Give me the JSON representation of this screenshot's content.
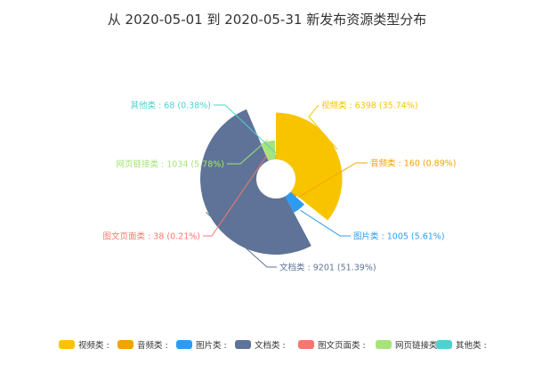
{
  "chart_data": {
    "type": "pie",
    "subtype": "rose",
    "title": "从 2020-05-01 到 2020-05-31 新发布资源类型分布",
    "legend_position": "bottom",
    "slices": [
      {
        "name": "视频类",
        "value": 6398,
        "percent": "35.74%",
        "color": "#f8c400",
        "label": "视频类 : 6398 (35.74%)"
      },
      {
        "name": "音频类",
        "value": 160,
        "percent": "0.89%",
        "color": "#f0a400",
        "label": "音频类 : 160 (0.89%)"
      },
      {
        "name": "图片类",
        "value": 1005,
        "percent": "5.61%",
        "color": "#2d9cf0",
        "label": "图片类 : 1005 (5.61%)"
      },
      {
        "name": "文档类",
        "value": 9201,
        "percent": "51.39%",
        "color": "#5e7397",
        "label": "文档类 : 9201 (51.39%)"
      },
      {
        "name": "图文页面类",
        "value": 38,
        "percent": "0.21%",
        "color": "#f57870",
        "label": "图文页面类 : 38 (0.21%)"
      },
      {
        "name": "网页链接类",
        "value": 1034,
        "percent": "5.78%",
        "color": "#a6e37a",
        "label": "网页链接类 : 1034 (5.78%)"
      },
      {
        "name": "其他类",
        "value": 68,
        "percent": "0.38%",
        "color": "#4dd2cf",
        "label": "其他类 : 68 (0.38%)"
      }
    ],
    "legend": [
      "视频类 :",
      "音频类 :",
      "图片类 :",
      "文档类 :",
      "图文页面类 :",
      "网页链接类 :",
      "其他类 :"
    ]
  }
}
